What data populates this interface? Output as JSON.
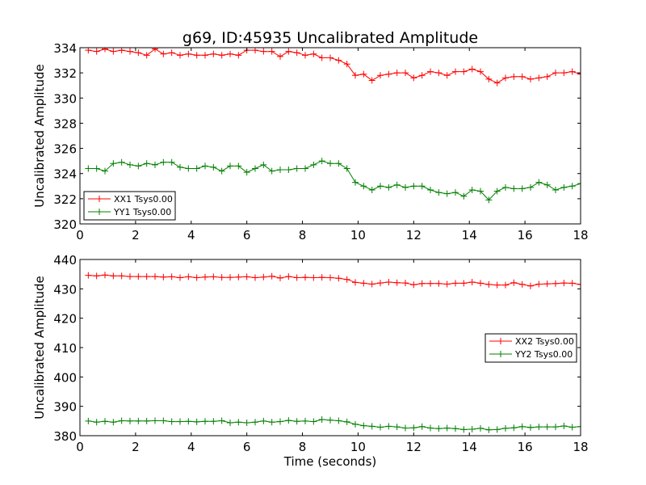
{
  "title": "g69, ID:45935 Uncalibrated Amplitude",
  "chart_data": [
    {
      "type": "line",
      "panel": "top",
      "ylabel": "Uncalibrated Amplitude",
      "xlabel": "",
      "xlim": [
        0,
        18
      ],
      "ylim": [
        320,
        334
      ],
      "xticks": [
        0,
        2,
        4,
        6,
        8,
        10,
        12,
        14,
        16,
        18
      ],
      "yticks": [
        320,
        322,
        324,
        326,
        328,
        330,
        332,
        334
      ],
      "legend_position": "lower-left",
      "marker": "+",
      "series": [
        {
          "name": "XX1 Tsys0.00",
          "color": "#ff0000",
          "x": [
            0.3,
            0.6,
            0.9,
            1.2,
            1.5,
            1.8,
            2.1,
            2.4,
            2.7,
            3.0,
            3.3,
            3.6,
            3.9,
            4.2,
            4.5,
            4.8,
            5.1,
            5.4,
            5.7,
            6.0,
            6.3,
            6.6,
            6.9,
            7.2,
            7.5,
            7.8,
            8.1,
            8.4,
            8.7,
            9.0,
            9.3,
            9.6,
            9.9,
            10.2,
            10.5,
            10.8,
            11.1,
            11.4,
            11.7,
            12.0,
            12.3,
            12.6,
            12.9,
            13.2,
            13.5,
            13.8,
            14.1,
            14.4,
            14.7,
            15.0,
            15.3,
            15.6,
            15.9,
            16.2,
            16.5,
            16.8,
            17.1,
            17.4,
            17.7,
            18.0
          ],
          "values": [
            333.8,
            333.7,
            333.9,
            333.7,
            333.8,
            333.7,
            333.6,
            333.4,
            333.9,
            333.5,
            333.6,
            333.4,
            333.5,
            333.4,
            333.4,
            333.5,
            333.4,
            333.5,
            333.4,
            333.8,
            333.8,
            333.7,
            333.7,
            333.3,
            333.7,
            333.6,
            333.4,
            333.5,
            333.2,
            333.2,
            333.0,
            332.7,
            331.8,
            331.9,
            331.4,
            331.8,
            331.9,
            332.0,
            332.0,
            331.6,
            331.8,
            332.1,
            332.0,
            331.8,
            332.1,
            332.1,
            332.3,
            332.1,
            331.5,
            331.2,
            331.6,
            331.7,
            331.7,
            331.5,
            331.6,
            331.7,
            332.0,
            332.0,
            332.1,
            331.9
          ]
        },
        {
          "name": "YY1 Tsys0.00",
          "color": "#008000",
          "x": [
            0.3,
            0.6,
            0.9,
            1.2,
            1.5,
            1.8,
            2.1,
            2.4,
            2.7,
            3.0,
            3.3,
            3.6,
            3.9,
            4.2,
            4.5,
            4.8,
            5.1,
            5.4,
            5.7,
            6.0,
            6.3,
            6.6,
            6.9,
            7.2,
            7.5,
            7.8,
            8.1,
            8.4,
            8.7,
            9.0,
            9.3,
            9.6,
            9.9,
            10.2,
            10.5,
            10.8,
            11.1,
            11.4,
            11.7,
            12.0,
            12.3,
            12.6,
            12.9,
            13.2,
            13.5,
            13.8,
            14.1,
            14.4,
            14.7,
            15.0,
            15.3,
            15.6,
            15.9,
            16.2,
            16.5,
            16.8,
            17.1,
            17.4,
            17.7,
            18.0
          ],
          "values": [
            324.4,
            324.4,
            324.2,
            324.8,
            324.9,
            324.7,
            324.6,
            324.8,
            324.7,
            324.9,
            324.9,
            324.5,
            324.4,
            324.4,
            324.6,
            324.5,
            324.2,
            324.6,
            324.6,
            324.1,
            324.4,
            324.7,
            324.2,
            324.3,
            324.3,
            324.4,
            324.4,
            324.7,
            325.0,
            324.8,
            324.8,
            324.4,
            323.3,
            323.0,
            322.7,
            323.0,
            322.9,
            323.1,
            322.9,
            323.0,
            323.0,
            322.7,
            322.5,
            322.4,
            322.5,
            322.2,
            322.7,
            322.6,
            321.9,
            322.6,
            322.9,
            322.8,
            322.8,
            322.9,
            323.3,
            323.1,
            322.7,
            322.9,
            323.0,
            323.2
          ]
        }
      ]
    },
    {
      "type": "line",
      "panel": "bottom",
      "ylabel": "Uncalibrated Amplitude",
      "xlabel": "Time (seconds)",
      "xlim": [
        0,
        18
      ],
      "ylim": [
        380,
        440
      ],
      "xticks": [
        0,
        2,
        4,
        6,
        8,
        10,
        12,
        14,
        16,
        18
      ],
      "yticks": [
        380,
        390,
        400,
        410,
        420,
        430,
        440
      ],
      "legend_position": "center-right",
      "marker": "+",
      "series": [
        {
          "name": "XX2 Tsys0.00",
          "color": "#ff0000",
          "x": [
            0.3,
            0.6,
            0.9,
            1.2,
            1.5,
            1.8,
            2.1,
            2.4,
            2.7,
            3.0,
            3.3,
            3.6,
            3.9,
            4.2,
            4.5,
            4.8,
            5.1,
            5.4,
            5.7,
            6.0,
            6.3,
            6.6,
            6.9,
            7.2,
            7.5,
            7.8,
            8.1,
            8.4,
            8.7,
            9.0,
            9.3,
            9.6,
            9.9,
            10.2,
            10.5,
            10.8,
            11.1,
            11.4,
            11.7,
            12.0,
            12.3,
            12.6,
            12.9,
            13.2,
            13.5,
            13.8,
            14.1,
            14.4,
            14.7,
            15.0,
            15.3,
            15.6,
            15.9,
            16.2,
            16.5,
            16.8,
            17.1,
            17.4,
            17.7,
            18.0
          ],
          "values": [
            434.6,
            434.4,
            434.7,
            434.4,
            434.4,
            434.2,
            434.2,
            434.2,
            434.2,
            434.0,
            434.1,
            433.8,
            434.1,
            433.8,
            434.0,
            434.1,
            433.9,
            433.9,
            434.0,
            434.1,
            433.8,
            434.0,
            434.3,
            433.7,
            434.2,
            433.8,
            433.9,
            433.8,
            433.9,
            433.8,
            433.6,
            433.2,
            432.2,
            431.9,
            431.6,
            432.0,
            432.3,
            432.1,
            432.0,
            431.4,
            431.8,
            431.8,
            431.8,
            431.6,
            431.9,
            431.9,
            432.3,
            431.9,
            431.5,
            431.3,
            431.3,
            432.1,
            431.5,
            431.0,
            431.6,
            431.7,
            431.8,
            432.0,
            431.9,
            431.5
          ]
        },
        {
          "name": "YY2 Tsys0.00",
          "color": "#008000",
          "x": [
            0.3,
            0.6,
            0.9,
            1.2,
            1.5,
            1.8,
            2.1,
            2.4,
            2.7,
            3.0,
            3.3,
            3.6,
            3.9,
            4.2,
            4.5,
            4.8,
            5.1,
            5.4,
            5.7,
            6.0,
            6.3,
            6.6,
            6.9,
            7.2,
            7.5,
            7.8,
            8.1,
            8.4,
            8.7,
            9.0,
            9.3,
            9.6,
            9.9,
            10.2,
            10.5,
            10.8,
            11.1,
            11.4,
            11.7,
            12.0,
            12.3,
            12.6,
            12.9,
            13.2,
            13.5,
            13.8,
            14.1,
            14.4,
            14.7,
            15.0,
            15.3,
            15.6,
            15.9,
            16.2,
            16.5,
            16.8,
            17.1,
            17.4,
            17.7,
            18.0
          ],
          "values": [
            385.0,
            384.6,
            384.9,
            384.6,
            385.1,
            385.0,
            385.0,
            385.0,
            385.1,
            385.1,
            384.8,
            384.8,
            384.9,
            384.7,
            384.9,
            384.9,
            385.1,
            384.4,
            384.6,
            384.4,
            384.6,
            385.0,
            384.6,
            384.8,
            385.2,
            384.9,
            385.0,
            384.8,
            385.5,
            385.3,
            385.1,
            384.7,
            383.9,
            383.4,
            383.2,
            382.9,
            383.2,
            383.0,
            382.6,
            382.7,
            383.1,
            382.6,
            382.4,
            382.6,
            382.4,
            382.1,
            382.2,
            382.5,
            382.0,
            382.1,
            382.5,
            382.7,
            383.1,
            382.8,
            383.0,
            383.0,
            383.0,
            383.3,
            382.9,
            383.1
          ]
        }
      ]
    }
  ]
}
